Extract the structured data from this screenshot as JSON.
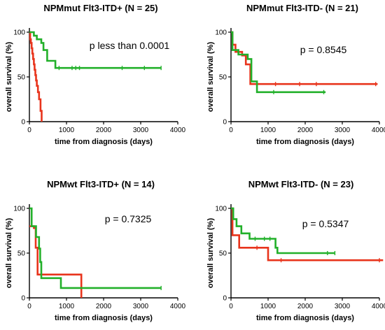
{
  "chart_data": [
    {
      "type": "line",
      "subtype": "kaplan-meier",
      "title": "NPMmut Flt3-ITD+ (N = 25)",
      "xlabel": "time from diagnosis (days)",
      "ylabel": "overall survival (%)",
      "annotation": "p less than 0.0001",
      "xlim": [
        0,
        4000
      ],
      "ylim": [
        0,
        100
      ],
      "xticks": [
        0,
        1000,
        2000,
        3000,
        4000
      ],
      "yticks": [
        0,
        50,
        100
      ],
      "series": [
        {
          "color": "#e8341c",
          "steps": [
            [
              0,
              100
            ],
            [
              20,
              92
            ],
            [
              40,
              88
            ],
            [
              60,
              82
            ],
            [
              80,
              76
            ],
            [
              100,
              70
            ],
            [
              120,
              64
            ],
            [
              140,
              58
            ],
            [
              160,
              52
            ],
            [
              180,
              46
            ],
            [
              200,
              40
            ],
            [
              230,
              33
            ],
            [
              260,
              25
            ],
            [
              300,
              12
            ],
            [
              330,
              0
            ]
          ],
          "censored": []
        },
        {
          "color": "#22b02a",
          "steps": [
            [
              0,
              100
            ],
            [
              120,
              96
            ],
            [
              200,
              92
            ],
            [
              320,
              88
            ],
            [
              380,
              80
            ],
            [
              480,
              68
            ],
            [
              700,
              60
            ],
            [
              3550,
              60
            ]
          ],
          "censored": [
            800,
            1150,
            1250,
            1350,
            2500,
            3100,
            3550
          ]
        }
      ]
    },
    {
      "type": "line",
      "subtype": "kaplan-meier",
      "title": "NPMmut Flt3-ITD- (N = 21)",
      "xlabel": "time from diagnosis (days)",
      "ylabel": "overall survival (%)",
      "annotation": "p = 0.8545",
      "xlim": [
        0,
        4000
      ],
      "ylim": [
        0,
        100
      ],
      "xticks": [
        0,
        1000,
        2000,
        3000,
        4000
      ],
      "yticks": [
        0,
        50,
        100
      ],
      "series": [
        {
          "color": "#e8341c",
          "steps": [
            [
              0,
              100
            ],
            [
              40,
              86
            ],
            [
              120,
              78
            ],
            [
              300,
              74
            ],
            [
              400,
              64
            ],
            [
              520,
              42
            ],
            [
              3950,
              42
            ]
          ],
          "censored": [
            1200,
            1850,
            2300,
            3900
          ]
        },
        {
          "color": "#22b02a",
          "steps": [
            [
              0,
              100
            ],
            [
              40,
              80
            ],
            [
              200,
              75
            ],
            [
              450,
              70
            ],
            [
              550,
              45
            ],
            [
              700,
              33
            ],
            [
              2550,
              33
            ]
          ],
          "censored": [
            1150,
            2500
          ]
        }
      ]
    },
    {
      "type": "line",
      "subtype": "kaplan-meier",
      "title": "NPMwt Flt3-ITD+ (N = 14)",
      "xlabel": "time from diagnosis (days)",
      "ylabel": "overall survival (%)",
      "annotation": "p = 0.7325",
      "xlim": [
        0,
        4000
      ],
      "ylim": [
        0,
        100
      ],
      "xticks": [
        0,
        1000,
        2000,
        3000,
        4000
      ],
      "yticks": [
        0,
        50,
        100
      ],
      "series": [
        {
          "color": "#e8341c",
          "steps": [
            [
              0,
              80
            ],
            [
              120,
              78
            ],
            [
              170,
              56
            ],
            [
              220,
              26
            ],
            [
              1400,
              26
            ],
            [
              1400,
              0
            ]
          ],
          "censored": []
        },
        {
          "color": "#22b02a",
          "steps": [
            [
              0,
              100
            ],
            [
              60,
              80
            ],
            [
              180,
              68
            ],
            [
              260,
              55
            ],
            [
              290,
              40
            ],
            [
              320,
              22
            ],
            [
              850,
              11
            ],
            [
              3550,
              11
            ]
          ],
          "censored": [
            3550
          ]
        }
      ]
    },
    {
      "type": "line",
      "subtype": "kaplan-meier",
      "title": "NPMwt Flt3-ITD- (N = 23)",
      "xlabel": "time from diagnosis (days)",
      "ylabel": "overall survival (%)",
      "annotation": "p = 0.5347",
      "xlim": [
        0,
        4000
      ],
      "ylim": [
        0,
        100
      ],
      "xticks": [
        0,
        1000,
        2000,
        3000,
        4000
      ],
      "yticks": [
        0,
        50,
        100
      ],
      "series": [
        {
          "color": "#e8341c",
          "steps": [
            [
              0,
              100
            ],
            [
              40,
              70
            ],
            [
              220,
              56
            ],
            [
              1000,
              42
            ],
            [
              4100,
              42
            ]
          ],
          "censored": [
            700,
            1350,
            4000
          ]
        },
        {
          "color": "#22b02a",
          "steps": [
            [
              0,
              100
            ],
            [
              60,
              88
            ],
            [
              150,
              80
            ],
            [
              280,
              72
            ],
            [
              500,
              66
            ],
            [
              1200,
              56
            ],
            [
              1250,
              50
            ],
            [
              2800,
              50
            ]
          ],
          "censored": [
            650,
            900,
            1050,
            2600,
            2800
          ]
        }
      ]
    }
  ]
}
